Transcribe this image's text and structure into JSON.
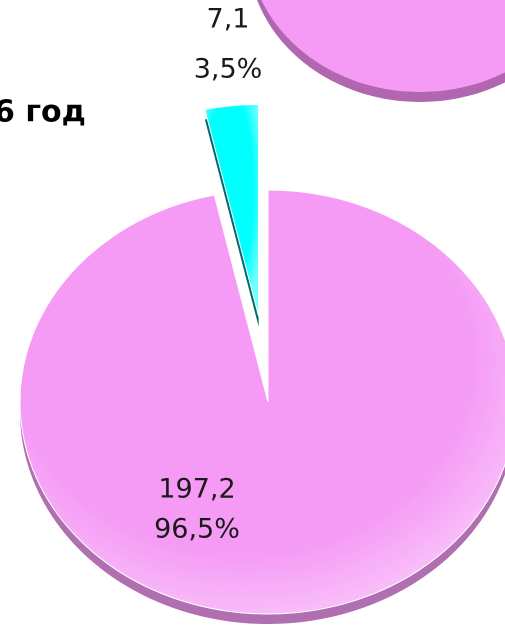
{
  "chart_data": {
    "type": "pie",
    "title": "6 год",
    "categories": [
      null,
      null
    ],
    "values": [
      197.2,
      7.1
    ],
    "value_labels": [
      "197,2",
      "7,1"
    ],
    "percents": [
      96.5,
      3.5
    ],
    "percent_labels": [
      "96,5%",
      "3,5%"
    ],
    "colors": [
      "#f59af5",
      "#00ffff"
    ]
  }
}
